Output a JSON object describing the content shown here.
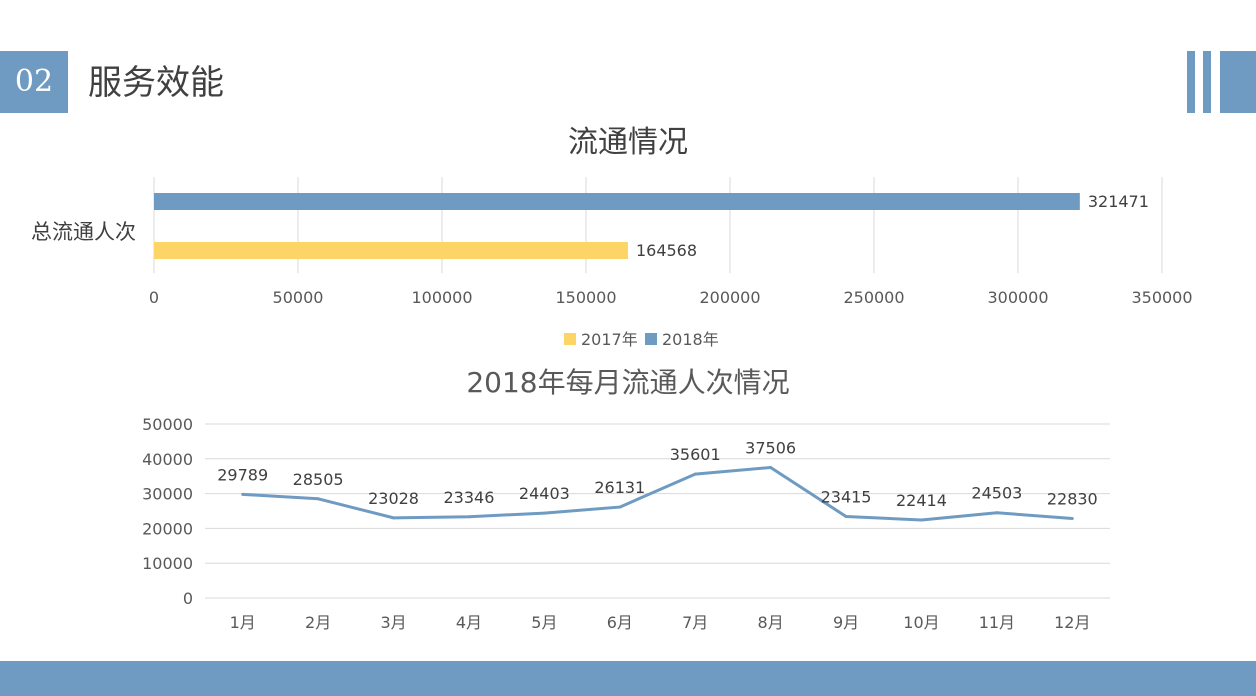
{
  "header": {
    "section_number": "02",
    "section_title": "服务效能"
  },
  "colors": {
    "accent": "#6f9bc2",
    "series_2017": "#fdd567",
    "series_2018": "#6f9bc2",
    "grid": "#d9d9d9",
    "text": "#595959"
  },
  "chart_data": [
    {
      "type": "bar",
      "orientation": "horizontal",
      "title": "流通情况",
      "categories": [
        "总流通人次"
      ],
      "series": [
        {
          "name": "2017年",
          "values": [
            164568
          ],
          "color": "#fdd567"
        },
        {
          "name": "2018年",
          "values": [
            321471
          ],
          "color": "#6f9bc2"
        }
      ],
      "xlim": [
        0,
        350000
      ],
      "tick_labels": [
        "0",
        "50000",
        "100000",
        "150000",
        "200000",
        "250000",
        "300000",
        "350000"
      ],
      "grid": true,
      "legend": "bottom",
      "data_labels": true
    },
    {
      "type": "line",
      "title": "2018年每月流通人次情况",
      "categories": [
        "1月",
        "2月",
        "3月",
        "4月",
        "5月",
        "6月",
        "7月",
        "8月",
        "9月",
        "10月",
        "11月",
        "12月"
      ],
      "series": [
        {
          "values": [
            29789,
            28505,
            23028,
            23346,
            24403,
            26131,
            35601,
            37506,
            23415,
            22414,
            24503,
            22830
          ],
          "color": "#6f9bc2"
        }
      ],
      "ylim": [
        0,
        50000
      ],
      "tick_labels": [
        "0",
        "10000",
        "20000",
        "30000",
        "40000",
        "50000"
      ],
      "grid": true,
      "legend": "none",
      "data_labels": true
    }
  ]
}
